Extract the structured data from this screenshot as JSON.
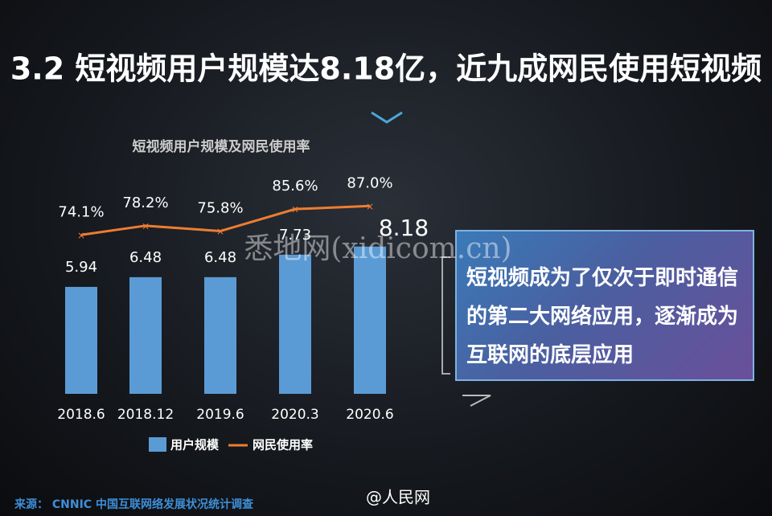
{
  "title": "3.2 短视频用户规模达8.18亿，近九成网民使用短视频",
  "chart_data": {
    "type": "bar-line",
    "title": "短视频用户规模及网民使用率",
    "categories": [
      "2018.6",
      "2018.12",
      "2019.6",
      "2020.3",
      "2020.6"
    ],
    "series": [
      {
        "name": "用户规模",
        "color": "#5b9bd5",
        "values": [
          5.94,
          6.48,
          6.48,
          7.73,
          8.18
        ]
      },
      {
        "name": "网民使用率",
        "color": "#ed7d31",
        "axis": "y2",
        "values": [
          74.1,
          78.2,
          75.8,
          85.6,
          87.0
        ],
        "value_labels": [
          "74.1%",
          "78.2%",
          "75.8%",
          "85.6%",
          "87.0%"
        ]
      }
    ],
    "ylim": [
      0,
      10
    ],
    "y2lim": [
      0,
      100
    ]
  },
  "callout": "短视频成为了仅次于即时通信的第二大网络应用，逐渐成为互联网的底层应用",
  "source": "来源： CNNIC 中国互联网络发展状况统计调查",
  "watermark": "悉地网(xidicom.cn)",
  "credit": "@人民网"
}
